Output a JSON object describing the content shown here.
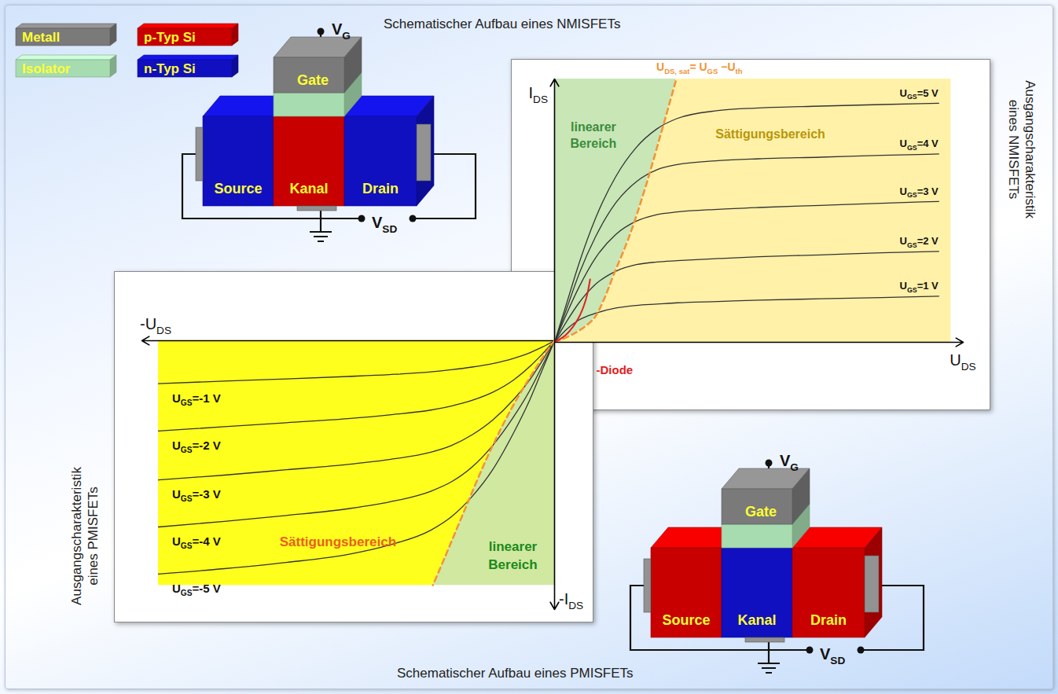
{
  "legend": [
    {
      "label": "Metall",
      "color": "#7a7a7a"
    },
    {
      "label": "p-Typ Si",
      "color": "#c80000"
    },
    {
      "label": "Isolator",
      "color": "#a6dcb0"
    },
    {
      "label": "n-Typ Si",
      "color": "#1010c0"
    }
  ],
  "schematics": [
    {
      "title": "Schematischer Aufbau eines NMISFETs",
      "body": [
        {
          "label": "Source",
          "material": "n-Typ Si"
        },
        {
          "label": "Kanal",
          "material": "p-Typ Si"
        },
        {
          "label": "Drain",
          "material": "n-Typ Si"
        }
      ],
      "gate": {
        "label": "Gate",
        "material": "Metall",
        "insulator": "Isolator"
      },
      "gate_terminal": "VG",
      "sd_terminal": "VSD"
    },
    {
      "title": "Schematischer Aufbau eines PMISFETs",
      "body": [
        {
          "label": "Source",
          "material": "p-Typ Si"
        },
        {
          "label": "Kanal",
          "material": "n-Typ Si"
        },
        {
          "label": "Drain",
          "material": "p-Typ Si"
        }
      ],
      "gate": {
        "label": "Gate",
        "material": "Metall",
        "insulator": "Isolator"
      },
      "gate_terminal": "VG",
      "sd_terminal": "VSD"
    }
  ],
  "chart_data": [
    {
      "type": "line",
      "title": "Ausgangscharakteristik eines NMISFETs",
      "x_label": "UDS",
      "y_label": "IDS",
      "xlim": [
        0,
        10
      ],
      "ylim": [
        0,
        10
      ],
      "tick_labels": false,
      "x": [
        0,
        0.3,
        0.6,
        1,
        1.5,
        2,
        2.5,
        3,
        4,
        5,
        6.5,
        8,
        9.4
      ],
      "series": [
        {
          "name": "UGS=1 V",
          "color": "#333333",
          "values": [
            0,
            0.5,
            0.85,
            1.1,
            1.3,
            1.4,
            1.45,
            1.5,
            1.55,
            1.6,
            1.65,
            1.7,
            1.75
          ]
        },
        {
          "name": "UGS=2 V",
          "color": "#333333",
          "values": [
            0,
            0.8,
            1.5,
            2.2,
            2.7,
            2.95,
            3.05,
            3.1,
            3.18,
            3.25,
            3.32,
            3.4,
            3.45
          ]
        },
        {
          "name": "UGS=3 V",
          "color": "#333333",
          "values": [
            0,
            1.1,
            2.1,
            3.2,
            4.1,
            4.6,
            4.85,
            4.95,
            5.05,
            5.12,
            5.2,
            5.28,
            5.35
          ]
        },
        {
          "name": "UGS=4 V",
          "color": "#333333",
          "values": [
            0,
            1.3,
            2.6,
            4.0,
            5.3,
            6.1,
            6.55,
            6.75,
            6.9,
            6.97,
            7.03,
            7.1,
            7.15
          ]
        },
        {
          "name": "UGS=5 V",
          "color": "#333333",
          "values": [
            0,
            1.5,
            3.0,
            4.7,
            6.3,
            7.4,
            8.1,
            8.5,
            8.8,
            8.9,
            8.97,
            9.03,
            9.08
          ]
        }
      ],
      "boundary": {
        "label": "UDS, sat= UGS −Uth",
        "color": "#f39237",
        "line_style": "dashed",
        "x": [
          0,
          0.5,
          0.96,
          1.2,
          1.44,
          1.83,
          2.21,
          2.6,
          2.98
        ],
        "y": [
          0,
          0.35,
          0.9,
          1.6,
          2.54,
          4.03,
          5.82,
          7.91,
          10
        ],
        "label_x": 2.5,
        "label_y": 10.3
      },
      "regions": [
        {
          "label": "linearer Bereich",
          "color": "#c8e6b6",
          "label_color": "#3c8c3c",
          "label_x": 0.96,
          "label_y": 7.85
        },
        {
          "label": "Sättigungsbereich",
          "color": "#fff1a8",
          "label_color": "#b8960a",
          "x_end": 9.7,
          "label_x": 5.29,
          "label_y": 7.91
        }
      ],
      "diode": {
        "label": "-Diode",
        "color": "#e02020",
        "x": [
          0,
          0.29,
          0.58,
          0.77,
          0.87
        ],
        "y": [
          0,
          0.3,
          0.9,
          1.64,
          2.39
        ],
        "label_x": 1.03,
        "label_y": -1.05
      }
    },
    {
      "type": "line",
      "title": "Ausgangscharakteristik eines PMISFETs",
      "x_label": "-UDS",
      "y_label": "-IDS",
      "xlim": [
        -10,
        0
      ],
      "ylim": [
        -10,
        0
      ],
      "tick_labels": false,
      "x": [
        -9.6,
        -8,
        -6.5,
        -5,
        -4,
        -3,
        -2.5,
        -2,
        -1.5,
        -1,
        -0.6,
        -0.3,
        0
      ],
      "series": [
        {
          "name": "UGS=-1 V",
          "color": "#333333",
          "values": [
            -1.6,
            -1.5,
            -1.42,
            -1.33,
            -1.26,
            -1.16,
            -1.08,
            -0.98,
            -0.85,
            -0.66,
            -0.45,
            -0.24,
            0
          ]
        },
        {
          "name": "UGS=-2 V",
          "color": "#333333",
          "values": [
            -3.36,
            -3.2,
            -3.05,
            -2.9,
            -2.76,
            -2.58,
            -2.43,
            -2.22,
            -1.92,
            -1.47,
            -0.96,
            -0.5,
            0
          ]
        },
        {
          "name": "UGS=-3 V",
          "color": "#333333",
          "values": [
            -5.18,
            -5.0,
            -4.8,
            -4.6,
            -4.42,
            -4.15,
            -3.9,
            -3.5,
            -2.95,
            -2.2,
            -1.45,
            -0.75,
            0
          ]
        },
        {
          "name": "UGS=-4 V",
          "color": "#333333",
          "values": [
            -6.93,
            -6.72,
            -6.5,
            -6.25,
            -6.0,
            -5.6,
            -5.25,
            -4.7,
            -3.9,
            -2.85,
            -1.85,
            -0.95,
            0
          ]
        },
        {
          "name": "UGS=-5 V",
          "color": "#333333",
          "values": [
            -8.68,
            -8.48,
            -8.25,
            -7.95,
            -7.6,
            -7.05,
            -6.55,
            -5.8,
            -4.8,
            -3.45,
            -2.2,
            -1.1,
            0
          ]
        }
      ],
      "boundary": {
        "color": "#f39237",
        "line_style": "dashed",
        "x": [
          0,
          -0.1,
          -0.48,
          -1.05,
          -1.62,
          -2.19,
          -2.67,
          -2.95
        ],
        "y": [
          0,
          -0.2,
          -1.08,
          -2.54,
          -4.3,
          -6.34,
          -8.1,
          -9.1
        ]
      },
      "regions": [
        {
          "label": "Sättigungsbereich",
          "color": "#ffff1e",
          "label_color": "#e8601c",
          "x_end": -9.6,
          "label_x": -5.24,
          "label_y": -7.51
        },
        {
          "label": "linearer Bereich",
          "color": "#d0e8a0",
          "label_color": "#1a8a1a",
          "label_x": -1.0,
          "label_y": -8.0
        }
      ]
    }
  ]
}
